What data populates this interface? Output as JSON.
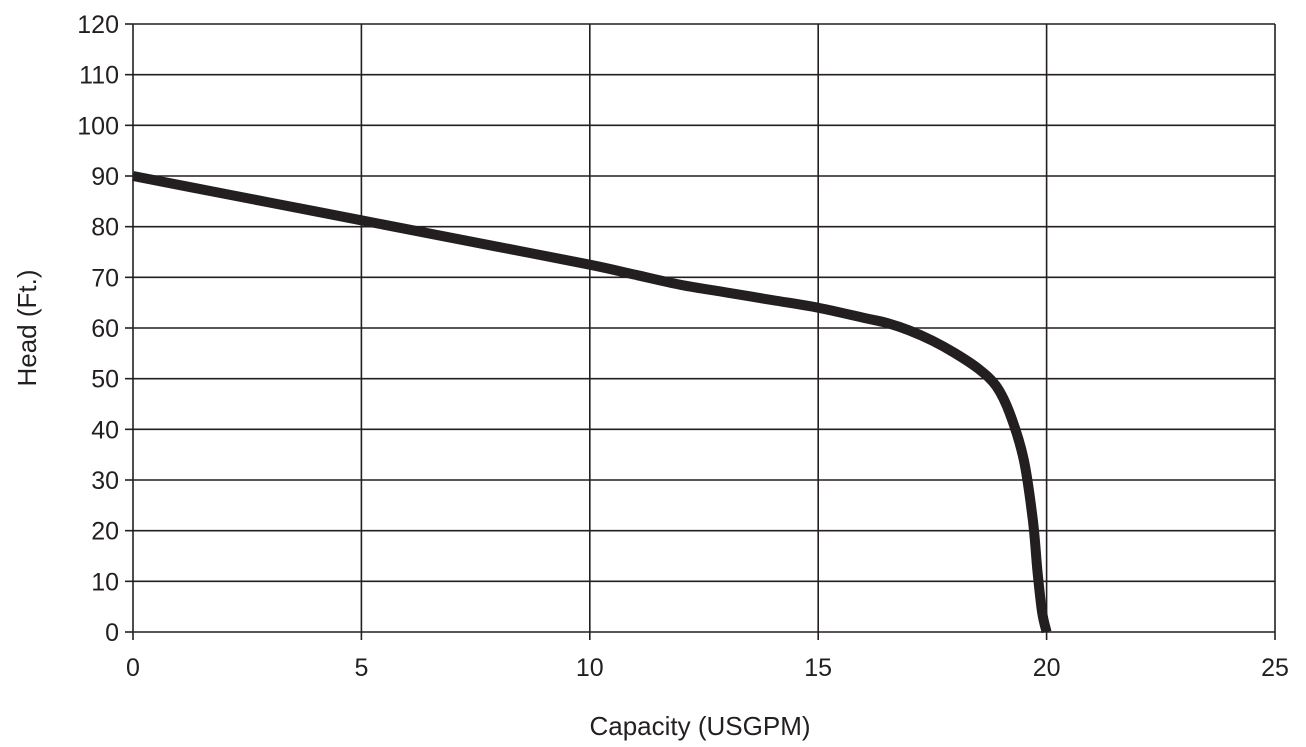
{
  "chart_data": {
    "type": "line",
    "title": "",
    "xlabel": "Capacity (USGPM)",
    "ylabel": "Head (Ft.)",
    "xlim": [
      0,
      25
    ],
    "ylim": [
      0,
      120
    ],
    "xticks": [
      0,
      5,
      10,
      15,
      20,
      25
    ],
    "yticks": [
      0,
      10,
      20,
      30,
      40,
      50,
      60,
      70,
      80,
      90,
      100,
      110,
      120
    ],
    "grid": true,
    "legend": "none",
    "line_color": "#231f20",
    "series": [
      {
        "x": [
          0,
          2,
          4,
          6,
          8,
          10,
          11,
          12,
          13,
          14,
          15,
          16,
          16.5,
          17,
          17.5,
          18,
          18.5,
          18.9,
          19.2,
          19.5,
          19.7,
          19.8,
          19.9,
          20.0
        ],
        "y": [
          90,
          86.5,
          83,
          79.5,
          76,
          72.5,
          70.5,
          68.5,
          67,
          65.5,
          64,
          62,
          61,
          59.5,
          57.5,
          55,
          52,
          48.5,
          43,
          34,
          22,
          12,
          4,
          0
        ]
      }
    ]
  }
}
